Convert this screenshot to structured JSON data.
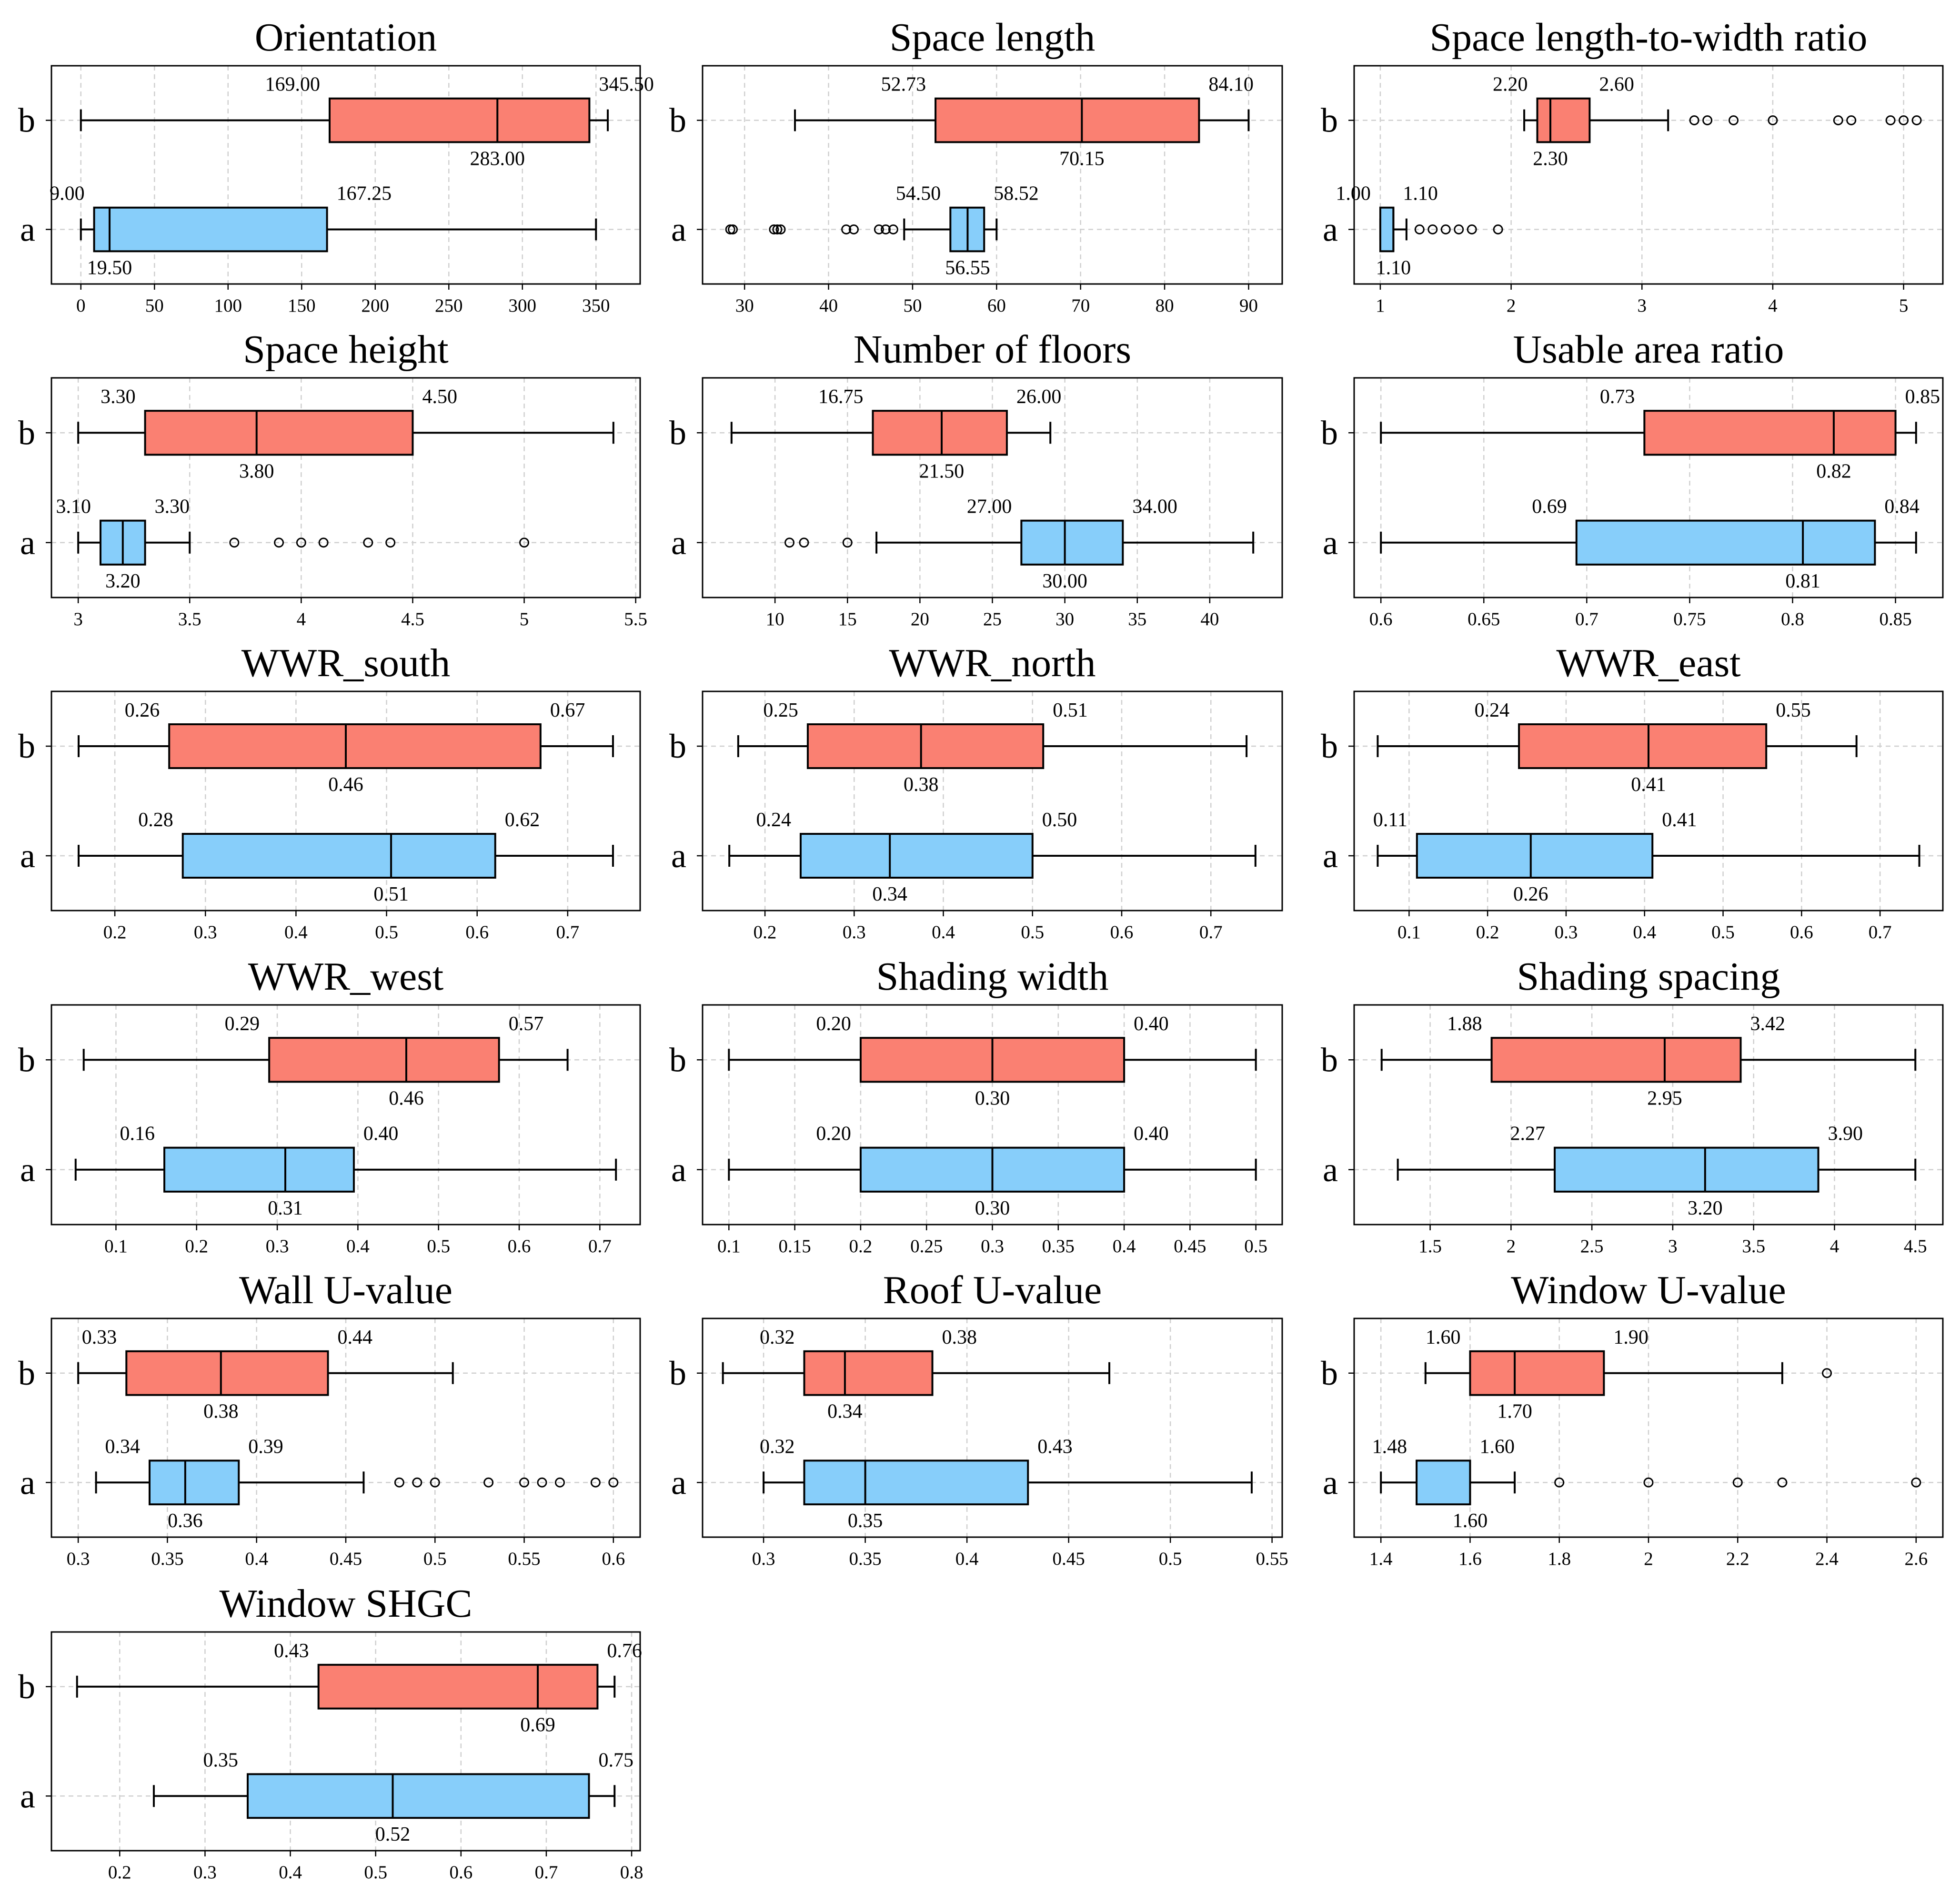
{
  "colors": {
    "b": "#FA8072",
    "a": "#87CEFA"
  },
  "chart_data": [
    {
      "type": "box",
      "title": "Orientation",
      "categories": [
        "b",
        "a"
      ],
      "xlim": [
        -20,
        380
      ],
      "xticks": [
        0,
        50,
        100,
        150,
        200,
        250,
        300,
        350
      ],
      "boxes": {
        "b": {
          "q1": 169,
          "median": 283,
          "q3": 345.5,
          "whislo": 0,
          "whishi": 358,
          "fliers": [],
          "labels": {
            "q1": "169.00",
            "median": "283.00",
            "q3": "345.50"
          }
        },
        "a": {
          "q1": 9,
          "median": 19.5,
          "q3": 167.25,
          "whislo": 0,
          "whishi": 350,
          "fliers": [],
          "labels": {
            "q1": "9.00",
            "median": "19.50",
            "q3": "167.25"
          }
        }
      }
    },
    {
      "type": "box",
      "title": "Space length",
      "categories": [
        "b",
        "a"
      ],
      "xlim": [
        25,
        94
      ],
      "xticks": [
        30,
        40,
        50,
        60,
        70,
        80,
        90
      ],
      "boxes": {
        "b": {
          "q1": 52.73,
          "median": 70.15,
          "q3": 84.1,
          "whislo": 36,
          "whishi": 90,
          "fliers": [],
          "labels": {
            "q1": "52.73",
            "median": "70.15",
            "q3": "84.10"
          }
        },
        "a": {
          "q1": 54.5,
          "median": 56.55,
          "q3": 58.52,
          "whislo": 49,
          "whishi": 60,
          "fliers": [
            28.3,
            28.6,
            33.5,
            33.9,
            34.3,
            42.1,
            43,
            46,
            46.8,
            47.7
          ],
          "labels": {
            "q1": "54.50",
            "median": "56.55",
            "q3": "58.52"
          }
        }
      }
    },
    {
      "type": "box",
      "title": "Space length-to-width ratio",
      "categories": [
        "b",
        "a"
      ],
      "xlim": [
        0.8,
        5.3
      ],
      "xticks": [
        1,
        2,
        3,
        4,
        5
      ],
      "boxes": {
        "b": {
          "q1": 2.2,
          "median": 2.3,
          "q3": 2.6,
          "whislo": 2.1,
          "whishi": 3.2,
          "fliers": [
            3.4,
            3.5,
            3.7,
            4.0,
            4.5,
            4.6,
            4.9,
            5.0,
            5.1
          ],
          "labels": {
            "q1": "2.20",
            "median": "2.30",
            "q3": "2.60"
          }
        },
        "a": {
          "q1": 1.0,
          "median": 1.1,
          "q3": 1.1,
          "whislo": 1.0,
          "whishi": 1.2,
          "fliers": [
            1.3,
            1.4,
            1.5,
            1.6,
            1.7,
            1.9
          ],
          "labels": {
            "q1": "1.00",
            "median": "1.10",
            "q3": "1.10"
          }
        }
      }
    },
    {
      "type": "box",
      "title": "Space height",
      "categories": [
        "b",
        "a"
      ],
      "xlim": [
        2.88,
        5.52
      ],
      "xticks": [
        3.0,
        3.5,
        4.0,
        4.5,
        5.0,
        5.5
      ],
      "boxes": {
        "b": {
          "q1": 3.3,
          "median": 3.8,
          "q3": 4.5,
          "whislo": 3.0,
          "whishi": 5.4,
          "fliers": [],
          "labels": {
            "q1": "3.30",
            "median": "3.80",
            "q3": "4.50"
          }
        },
        "a": {
          "q1": 3.1,
          "median": 3.2,
          "q3": 3.3,
          "whislo": 3.0,
          "whishi": 3.5,
          "fliers": [
            3.7,
            3.9,
            4.0,
            4.1,
            4.3,
            4.4,
            5.0
          ],
          "labels": {
            "q1": "3.10",
            "median": "3.20",
            "q3": "3.30"
          }
        }
      }
    },
    {
      "type": "box",
      "title": "Number of floors",
      "categories": [
        "b",
        "a"
      ],
      "xlim": [
        5,
        45
      ],
      "xticks": [
        10,
        15,
        20,
        25,
        30,
        35,
        40
      ],
      "boxes": {
        "b": {
          "q1": 16.75,
          "median": 21.5,
          "q3": 26,
          "whislo": 7,
          "whishi": 29,
          "fliers": [],
          "labels": {
            "q1": "16.75",
            "median": "21.50",
            "q3": "26.00"
          }
        },
        "a": {
          "q1": 27,
          "median": 30,
          "q3": 34,
          "whislo": 17,
          "whishi": 43,
          "fliers": [
            11,
            12,
            15
          ],
          "labels": {
            "q1": "27.00",
            "median": "30.00",
            "q3": "34.00"
          }
        }
      }
    },
    {
      "type": "box",
      "title": "Usable area ratio",
      "categories": [
        "b",
        "a"
      ],
      "xlim": [
        0.587,
        0.873
      ],
      "xticks": [
        0.6,
        0.65,
        0.7,
        0.75,
        0.8,
        0.85
      ],
      "boxes": {
        "b": {
          "q1": 0.728,
          "median": 0.82,
          "q3": 0.85,
          "whislo": 0.6,
          "whishi": 0.86,
          "fliers": [],
          "labels": {
            "q1": "0.73",
            "median": "0.82",
            "q3": "0.85"
          }
        },
        "a": {
          "q1": 0.695,
          "median": 0.805,
          "q3": 0.84,
          "whislo": 0.6,
          "whishi": 0.86,
          "fliers": [],
          "labels": {
            "q1": "0.69",
            "median": "0.81",
            "q3": "0.84"
          }
        }
      }
    },
    {
      "type": "box",
      "title": "WWR_south",
      "categories": [
        "b",
        "a"
      ],
      "xlim": [
        0.13,
        0.78
      ],
      "xticks": [
        0.2,
        0.3,
        0.4,
        0.5,
        0.6,
        0.7
      ],
      "boxes": {
        "b": {
          "q1": 0.26,
          "median": 0.455,
          "q3": 0.67,
          "whislo": 0.16,
          "whishi": 0.75,
          "fliers": [],
          "labels": {
            "q1": "0.26",
            "median": "0.46",
            "q3": "0.67"
          }
        },
        "a": {
          "q1": 0.275,
          "median": 0.505,
          "q3": 0.62,
          "whislo": 0.16,
          "whishi": 0.75,
          "fliers": [],
          "labels": {
            "q1": "0.28",
            "median": "0.51",
            "q3": "0.62"
          }
        }
      }
    },
    {
      "type": "box",
      "title": "WWR_north",
      "categories": [
        "b",
        "a"
      ],
      "xlim": [
        0.13,
        0.78
      ],
      "xticks": [
        0.2,
        0.3,
        0.4,
        0.5,
        0.6,
        0.7
      ],
      "boxes": {
        "b": {
          "q1": 0.248,
          "median": 0.375,
          "q3": 0.512,
          "whislo": 0.17,
          "whishi": 0.74,
          "fliers": [],
          "labels": {
            "q1": "0.25",
            "median": "0.38",
            "q3": "0.51"
          }
        },
        "a": {
          "q1": 0.24,
          "median": 0.34,
          "q3": 0.5,
          "whislo": 0.16,
          "whishi": 0.75,
          "fliers": [],
          "labels": {
            "q1": "0.24",
            "median": "0.34",
            "q3": "0.50"
          }
        }
      }
    },
    {
      "type": "box",
      "title": "WWR_east",
      "categories": [
        "b",
        "a"
      ],
      "xlim": [
        0.03,
        0.78
      ],
      "xticks": [
        0.1,
        0.2,
        0.3,
        0.4,
        0.5,
        0.6,
        0.7
      ],
      "boxes": {
        "b": {
          "q1": 0.24,
          "median": 0.405,
          "q3": 0.555,
          "whislo": 0.06,
          "whishi": 0.67,
          "fliers": [],
          "labels": {
            "q1": "0.24",
            "median": "0.41",
            "q3": "0.55"
          }
        },
        "a": {
          "q1": 0.11,
          "median": 0.255,
          "q3": 0.41,
          "whislo": 0.06,
          "whishi": 0.75,
          "fliers": [],
          "labels": {
            "q1": "0.11",
            "median": "0.26",
            "q3": "0.41"
          }
        }
      }
    },
    {
      "type": "box",
      "title": "WWR_west",
      "categories": [
        "b",
        "a"
      ],
      "xlim": [
        0.02,
        0.75
      ],
      "xticks": [
        0.1,
        0.2,
        0.3,
        0.4,
        0.5,
        0.6,
        0.7
      ],
      "boxes": {
        "b": {
          "q1": 0.29,
          "median": 0.46,
          "q3": 0.575,
          "whislo": 0.06,
          "whishi": 0.66,
          "fliers": [],
          "labels": {
            "q1": "0.29",
            "median": "0.46",
            "q3": "0.57"
          }
        },
        "a": {
          "q1": 0.16,
          "median": 0.31,
          "q3": 0.395,
          "whislo": 0.05,
          "whishi": 0.72,
          "fliers": [],
          "labels": {
            "q1": "0.16",
            "median": "0.31",
            "q3": "0.40"
          }
        }
      }
    },
    {
      "type": "box",
      "title": "Shading width",
      "categories": [
        "b",
        "a"
      ],
      "xlim": [
        0.08,
        0.52
      ],
      "xticks": [
        0.1,
        0.15,
        0.2,
        0.25,
        0.3,
        0.35,
        0.4,
        0.45,
        0.5
      ],
      "boxes": {
        "b": {
          "q1": 0.2,
          "median": 0.3,
          "q3": 0.4,
          "whislo": 0.1,
          "whishi": 0.5,
          "fliers": [],
          "labels": {
            "q1": "0.20",
            "median": "0.30",
            "q3": "0.40"
          }
        },
        "a": {
          "q1": 0.2,
          "median": 0.3,
          "q3": 0.4,
          "whislo": 0.1,
          "whishi": 0.5,
          "fliers": [],
          "labels": {
            "q1": "0.20",
            "median": "0.30",
            "q3": "0.40"
          }
        }
      }
    },
    {
      "type": "box",
      "title": "Shading spacing",
      "categories": [
        "b",
        "a"
      ],
      "xlim": [
        1.03,
        4.67
      ],
      "xticks": [
        1.5,
        2.0,
        2.5,
        3.0,
        3.5,
        4.0,
        4.5
      ],
      "boxes": {
        "b": {
          "q1": 1.88,
          "median": 2.95,
          "q3": 3.42,
          "whislo": 1.2,
          "whishi": 4.5,
          "fliers": [],
          "labels": {
            "q1": "1.88",
            "median": "2.95",
            "q3": "3.42"
          }
        },
        "a": {
          "q1": 2.27,
          "median": 3.2,
          "q3": 3.9,
          "whislo": 1.3,
          "whishi": 4.5,
          "fliers": [],
          "labels": {
            "q1": "2.27",
            "median": "3.20",
            "q3": "3.90"
          }
        }
      }
    },
    {
      "type": "box",
      "title": "Wall U-value",
      "categories": [
        "b",
        "a"
      ],
      "xlim": [
        0.285,
        0.615
      ],
      "xticks": [
        0.3,
        0.35,
        0.4,
        0.45,
        0.5,
        0.55,
        0.6
      ],
      "boxes": {
        "b": {
          "q1": 0.327,
          "median": 0.38,
          "q3": 0.44,
          "whislo": 0.3,
          "whishi": 0.51,
          "fliers": [],
          "labels": {
            "q1": "0.33",
            "median": "0.38",
            "q3": "0.44"
          }
        },
        "a": {
          "q1": 0.34,
          "median": 0.36,
          "q3": 0.39,
          "whislo": 0.31,
          "whishi": 0.46,
          "fliers": [
            0.48,
            0.49,
            0.5,
            0.53,
            0.55,
            0.56,
            0.57,
            0.59,
            0.6
          ],
          "labels": {
            "q1": "0.34",
            "median": "0.36",
            "q3": "0.39"
          }
        }
      }
    },
    {
      "type": "box",
      "title": "Roof U-value",
      "categories": [
        "b",
        "a"
      ],
      "xlim": [
        0.27,
        0.555
      ],
      "xticks": [
        0.3,
        0.35,
        0.4,
        0.45,
        0.5,
        0.55
      ],
      "boxes": {
        "b": {
          "q1": 0.32,
          "median": 0.34,
          "q3": 0.383,
          "whislo": 0.28,
          "whishi": 0.47,
          "fliers": [],
          "labels": {
            "q1": "0.32",
            "median": "0.34",
            "q3": "0.38"
          }
        },
        "a": {
          "q1": 0.32,
          "median": 0.35,
          "q3": 0.43,
          "whislo": 0.3,
          "whishi": 0.54,
          "fliers": [],
          "labels": {
            "q1": "0.32",
            "median": "0.35",
            "q3": "0.43"
          }
        }
      }
    },
    {
      "type": "box",
      "title": "Window U-value",
      "categories": [
        "b",
        "a"
      ],
      "xlim": [
        1.34,
        2.66
      ],
      "xticks": [
        1.4,
        1.6,
        1.8,
        2.0,
        2.2,
        2.4,
        2.6
      ],
      "boxes": {
        "b": {
          "q1": 1.6,
          "median": 1.7,
          "q3": 1.9,
          "whislo": 1.5,
          "whishi": 2.3,
          "fliers": [
            2.4
          ],
          "labels": {
            "q1": "1.60",
            "median": "1.70",
            "q3": "1.90"
          }
        },
        "a": {
          "q1": 1.48,
          "median": 1.6,
          "q3": 1.6,
          "whislo": 1.4,
          "whishi": 1.7,
          "fliers": [
            1.8,
            2.0,
            2.2,
            2.3,
            2.6
          ],
          "labels": {
            "q1": "1.48",
            "median": "1.60",
            "q3": "1.60"
          }
        }
      }
    },
    {
      "type": "box",
      "title": "Window SHGC",
      "categories": [
        "b",
        "a"
      ],
      "xlim": [
        0.12,
        0.81
      ],
      "xticks": [
        0.2,
        0.3,
        0.4,
        0.5,
        0.6,
        0.7,
        0.8
      ],
      "boxes": {
        "b": {
          "q1": 0.433,
          "median": 0.69,
          "q3": 0.76,
          "whislo": 0.15,
          "whishi": 0.78,
          "fliers": [],
          "labels": {
            "q1": "0.43",
            "median": "0.69",
            "q3": "0.76"
          }
        },
        "a": {
          "q1": 0.35,
          "median": 0.52,
          "q3": 0.75,
          "whislo": 0.24,
          "whishi": 0.78,
          "fliers": [],
          "labels": {
            "q1": "0.35",
            "median": "0.52",
            "q3": "0.75"
          }
        }
      }
    }
  ]
}
